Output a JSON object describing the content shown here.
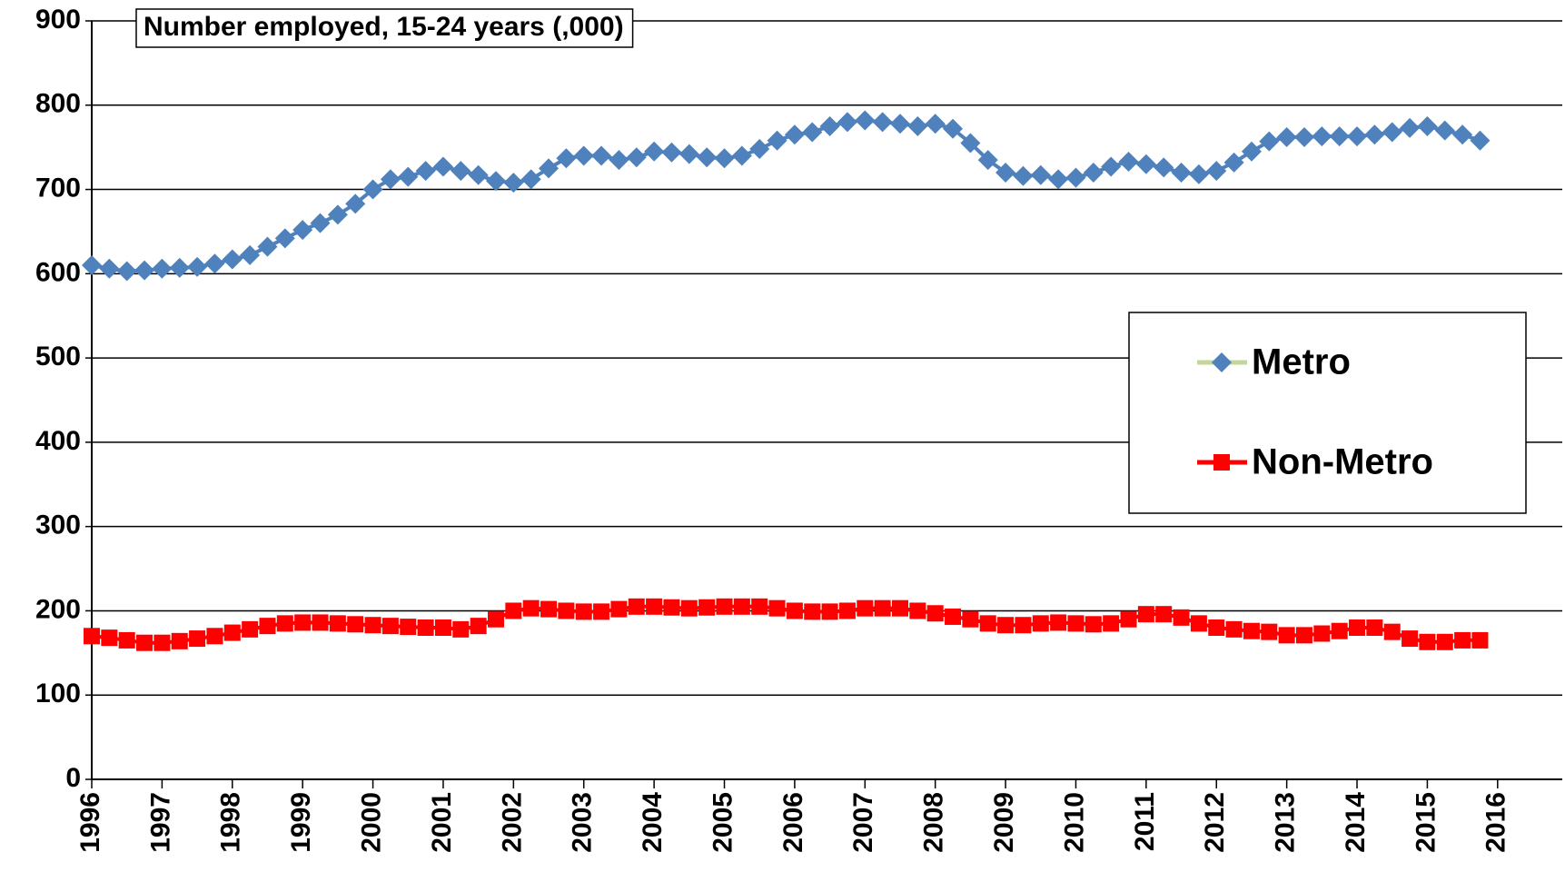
{
  "chart_data": {
    "type": "line",
    "title": "Number employed, 15-24 years (,000)",
    "x": [
      1996,
      1996.25,
      1996.5,
      1996.75,
      1997,
      1997.25,
      1997.5,
      1997.75,
      1998,
      1998.25,
      1998.5,
      1998.75,
      1999,
      1999.25,
      1999.5,
      1999.75,
      2000,
      2000.25,
      2000.5,
      2000.75,
      2001,
      2001.25,
      2001.5,
      2001.75,
      2002,
      2002.25,
      2002.5,
      2002.75,
      2003,
      2003.25,
      2003.5,
      2003.75,
      2004,
      2004.25,
      2004.5,
      2004.75,
      2005,
      2005.25,
      2005.5,
      2005.75,
      2006,
      2006.25,
      2006.5,
      2006.75,
      2007,
      2007.25,
      2007.5,
      2007.75,
      2008,
      2008.25,
      2008.5,
      2008.75,
      2009,
      2009.25,
      2009.5,
      2009.75,
      2010,
      2010.25,
      2010.5,
      2010.75,
      2011,
      2011.25,
      2011.5,
      2011.75,
      2012,
      2012.25,
      2012.5,
      2012.75,
      2013,
      2013.25,
      2013.5,
      2013.75,
      2014,
      2014.25,
      2014.5,
      2014.75,
      2015,
      2015.25,
      2015.5,
      2015.75
    ],
    "series": [
      {
        "name": "Metro",
        "color": "#4f81bd",
        "marker": "diamond",
        "values": [
          610,
          606,
          603,
          604,
          606,
          607,
          608,
          612,
          617,
          622,
          632,
          642,
          652,
          660,
          670,
          683,
          700,
          712,
          715,
          722,
          727,
          722,
          717,
          710,
          708,
          712,
          725,
          737,
          740,
          740,
          735,
          738,
          745,
          744,
          742,
          738,
          737,
          740,
          748,
          758,
          765,
          768,
          775,
          780,
          782,
          780,
          778,
          775,
          778,
          772,
          755,
          735,
          720,
          716,
          717,
          712,
          714,
          720,
          727,
          733,
          730,
          726,
          720,
          718,
          722,
          732,
          745,
          757,
          762,
          762,
          763,
          763,
          763,
          765,
          768,
          773,
          775,
          770,
          765,
          758
        ]
      },
      {
        "name": "Non-Metro",
        "color": "#ff0000",
        "marker": "square",
        "values": [
          170,
          168,
          165,
          162,
          162,
          164,
          167,
          170,
          174,
          178,
          182,
          185,
          186,
          186,
          185,
          184,
          183,
          182,
          181,
          180,
          180,
          178,
          182,
          190,
          200,
          203,
          202,
          200,
          199,
          199,
          202,
          205,
          205,
          204,
          203,
          204,
          205,
          205,
          205,
          203,
          200,
          199,
          199,
          200,
          203,
          203,
          203,
          200,
          197,
          193,
          190,
          185,
          183,
          183,
          185,
          186,
          185,
          184,
          185,
          190,
          196,
          196,
          192,
          185,
          180,
          178,
          176,
          175,
          171,
          171,
          173,
          176,
          180,
          180,
          175,
          167,
          163,
          163,
          165,
          165
        ]
      }
    ],
    "xlim": [
      1996,
      2016.92
    ],
    "xticks": [
      1996,
      1997,
      1998,
      1999,
      2000,
      2001,
      2002,
      2003,
      2004,
      2005,
      2006,
      2007,
      2008,
      2009,
      2010,
      2011,
      2012,
      2013,
      2014,
      2015,
      2016
    ],
    "ylim": [
      0,
      900
    ],
    "yticks": [
      0,
      100,
      200,
      300,
      400,
      500,
      600,
      700,
      800,
      900
    ],
    "grid": true,
    "legend": "right"
  }
}
